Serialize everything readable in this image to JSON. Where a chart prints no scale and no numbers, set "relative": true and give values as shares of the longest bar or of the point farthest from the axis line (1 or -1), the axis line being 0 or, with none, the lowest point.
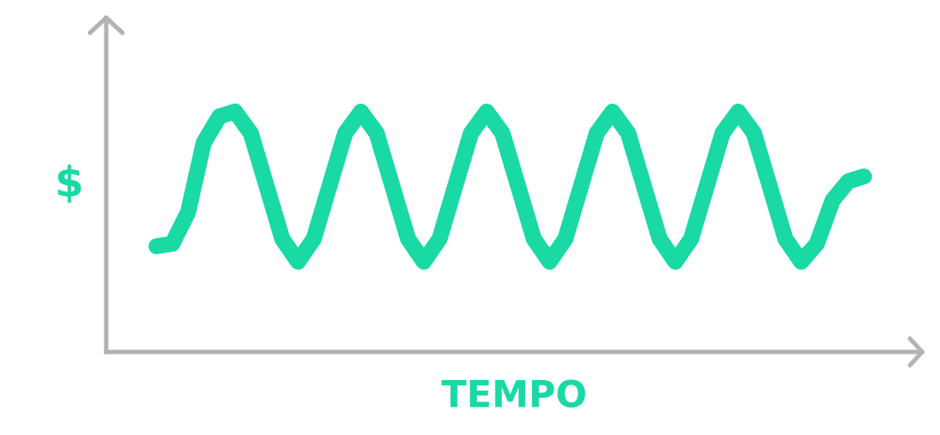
{
  "chart_data": {
    "type": "line",
    "relative": true,
    "xlabel": "TEMPO",
    "ylabel": "$",
    "color": "#19d9a5",
    "categories": [
      null,
      null,
      null,
      null,
      null,
      null,
      null,
      null,
      null,
      null,
      null,
      null,
      null,
      null,
      null,
      null,
      null,
      null,
      null,
      null,
      null,
      null,
      null,
      null,
      null,
      null,
      null,
      null,
      null,
      null,
      null,
      null,
      null,
      null,
      null,
      null,
      null,
      null,
      null,
      null,
      null,
      null,
      null,
      null,
      null,
      null
    ],
    "values": [
      0.44,
      0.45,
      0.58,
      0.87,
      0.98,
      1.0,
      0.91,
      0.69,
      0.47,
      0.375,
      0.47,
      0.69,
      0.91,
      1.0,
      0.91,
      0.69,
      0.47,
      0.375,
      0.47,
      0.69,
      0.91,
      1.0,
      0.91,
      0.69,
      0.47,
      0.375,
      0.47,
      0.69,
      0.91,
      1.0,
      0.91,
      0.69,
      0.47,
      0.375,
      0.47,
      0.69,
      0.91,
      1.0,
      0.91,
      0.69,
      0.47,
      0.375,
      0.45,
      0.63,
      0.71,
      0.73
    ]
  }
}
